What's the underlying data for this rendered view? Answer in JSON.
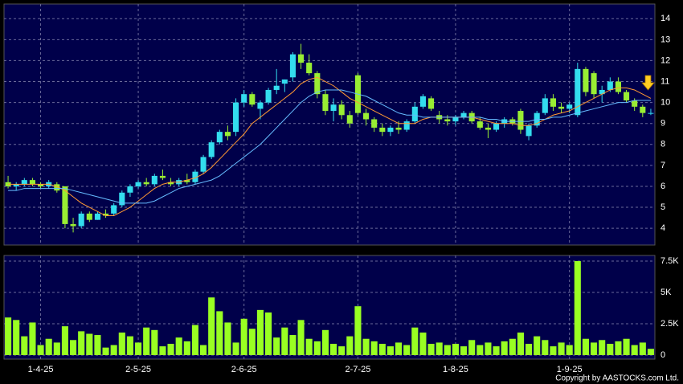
{
  "chart_data": [
    {
      "type": "candlestick",
      "ylim": [
        3.2,
        14.7
      ],
      "yticks": [
        4,
        5,
        6,
        7,
        8,
        9,
        10,
        11,
        12,
        13,
        14
      ],
      "grid": true,
      "up_color": "#33ddee",
      "down_color": "#99ee33",
      "candles": [
        [
          6.2,
          6.5,
          5.9,
          6.0
        ],
        [
          6.0,
          6.2,
          5.8,
          6.1
        ],
        [
          6.1,
          6.4,
          6.0,
          6.3
        ],
        [
          6.3,
          6.4,
          6.0,
          6.1
        ],
        [
          6.1,
          6.2,
          5.9,
          6.0
        ],
        [
          6.0,
          6.3,
          5.9,
          6.2
        ],
        [
          6.1,
          6.2,
          5.7,
          5.8
        ],
        [
          6.0,
          6.0,
          4.0,
          4.2
        ],
        [
          4.2,
          4.5,
          3.8,
          4.1
        ],
        [
          4.1,
          4.8,
          4.0,
          4.7
        ],
        [
          4.7,
          4.8,
          4.3,
          4.4
        ],
        [
          4.4,
          4.8,
          4.4,
          4.7
        ],
        [
          4.7,
          4.9,
          4.5,
          4.6
        ],
        [
          4.7,
          5.2,
          4.6,
          5.1
        ],
        [
          5.1,
          5.8,
          5.0,
          5.7
        ],
        [
          5.7,
          6.1,
          5.5,
          6.0
        ],
        [
          6.0,
          6.3,
          5.9,
          6.2
        ],
        [
          6.2,
          6.4,
          6.0,
          6.1
        ],
        [
          6.1,
          6.6,
          6.0,
          6.5
        ],
        [
          6.5,
          6.8,
          6.3,
          6.4
        ],
        [
          6.2,
          6.4,
          6.0,
          6.1
        ],
        [
          6.1,
          6.4,
          6.0,
          6.3
        ],
        [
          6.3,
          6.6,
          6.1,
          6.2
        ],
        [
          6.2,
          6.8,
          6.1,
          6.7
        ],
        [
          6.7,
          7.5,
          6.6,
          7.4
        ],
        [
          7.4,
          8.2,
          7.3,
          8.1
        ],
        [
          8.1,
          8.7,
          8.0,
          8.6
        ],
        [
          8.6,
          8.9,
          8.2,
          8.4
        ],
        [
          8.6,
          10.2,
          8.4,
          10.0
        ],
        [
          10.0,
          10.6,
          9.8,
          10.4
        ],
        [
          10.4,
          10.5,
          9.8,
          9.9
        ],
        [
          9.7,
          10.1,
          9.2,
          10.0
        ],
        [
          10.0,
          10.7,
          9.9,
          10.6
        ],
        [
          10.6,
          11.6,
          10.4,
          10.8
        ],
        [
          10.9,
          11.1,
          10.5,
          11.1
        ],
        [
          11.2,
          12.4,
          11.0,
          12.3
        ],
        [
          12.3,
          12.8,
          11.6,
          11.9
        ],
        [
          11.9,
          12.3,
          11.3,
          11.4
        ],
        [
          11.4,
          11.5,
          10.2,
          10.4
        ],
        [
          10.4,
          10.6,
          9.4,
          9.6
        ],
        [
          9.6,
          10.2,
          9.1,
          9.9
        ],
        [
          9.9,
          10.1,
          9.2,
          9.4
        ],
        [
          9.4,
          9.6,
          8.8,
          9.0
        ],
        [
          11.3,
          11.4,
          9.4,
          9.5
        ],
        [
          9.5,
          9.7,
          8.9,
          9.2
        ],
        [
          9.2,
          9.3,
          8.6,
          8.8
        ],
        [
          8.8,
          9.0,
          8.4,
          8.6
        ],
        [
          8.6,
          8.9,
          8.4,
          8.8
        ],
        [
          8.8,
          9.1,
          8.5,
          8.7
        ],
        [
          8.7,
          9.2,
          8.6,
          9.1
        ],
        [
          9.1,
          10.0,
          9.0,
          9.8
        ],
        [
          9.8,
          10.4,
          9.7,
          10.3
        ],
        [
          10.2,
          10.3,
          9.6,
          9.7
        ],
        [
          9.4,
          9.6,
          9.0,
          9.2
        ],
        [
          9.2,
          9.4,
          8.9,
          9.1
        ],
        [
          9.1,
          9.4,
          8.9,
          9.3
        ],
        [
          9.3,
          9.6,
          9.2,
          9.5
        ],
        [
          9.5,
          9.6,
          9.0,
          9.1
        ],
        [
          9.1,
          9.3,
          8.7,
          8.8
        ],
        [
          8.8,
          9.0,
          8.3,
          8.7
        ],
        [
          8.7,
          9.1,
          8.6,
          9.0
        ],
        [
          9.0,
          9.3,
          8.8,
          9.2
        ],
        [
          9.2,
          9.3,
          8.9,
          9.0
        ],
        [
          9.6,
          9.7,
          8.5,
          8.7
        ],
        [
          8.4,
          9.0,
          8.2,
          8.9
        ],
        [
          8.9,
          9.6,
          8.8,
          9.5
        ],
        [
          9.5,
          10.4,
          9.4,
          10.2
        ],
        [
          10.2,
          10.4,
          9.6,
          9.8
        ],
        [
          9.8,
          10.0,
          9.5,
          9.7
        ],
        [
          9.7,
          10.0,
          9.5,
          9.9
        ],
        [
          9.4,
          11.9,
          9.3,
          11.6
        ],
        [
          11.6,
          11.7,
          10.3,
          10.5
        ],
        [
          11.4,
          11.5,
          10.2,
          10.4
        ],
        [
          10.4,
          10.8,
          10.0,
          10.6
        ],
        [
          10.6,
          11.2,
          10.5,
          11.0
        ],
        [
          11.0,
          11.2,
          10.4,
          10.5
        ],
        [
          10.5,
          10.6,
          10.0,
          10.1
        ],
        [
          10.1,
          10.2,
          9.6,
          9.8
        ],
        [
          9.8,
          9.9,
          9.3,
          9.5
        ],
        [
          9.5,
          9.7,
          9.4,
          9.5
        ]
      ],
      "series": [
        {
          "color": "#ff9933",
          "values": [
            6.1,
            6.1,
            6.1,
            6.1,
            6.1,
            6.1,
            6.0,
            5.8,
            5.5,
            5.2,
            5.0,
            4.8,
            4.6,
            4.6,
            4.8,
            5.0,
            5.3,
            5.6,
            5.9,
            6.1,
            6.2,
            6.2,
            6.3,
            6.4,
            6.6,
            6.9,
            7.3,
            7.7,
            8.1,
            8.5,
            9.0,
            9.3,
            9.6,
            9.9,
            10.2,
            10.5,
            10.9,
            11.1,
            11.2,
            11.0,
            10.8,
            10.5,
            10.2,
            10.0,
            9.8,
            9.6,
            9.4,
            9.2,
            9.0,
            9.0,
            9.0,
            9.2,
            9.3,
            9.3,
            9.3,
            9.3,
            9.3,
            9.3,
            9.2,
            9.1,
            9.0,
            9.0,
            9.0,
            8.9,
            8.9,
            9.0,
            9.2,
            9.4,
            9.5,
            9.6,
            9.8,
            10.0,
            10.2,
            10.4,
            10.6,
            10.7,
            10.7,
            10.6,
            10.4,
            10.2
          ]
        },
        {
          "color": "#66bbff",
          "values": [
            5.8,
            5.8,
            5.9,
            5.9,
            5.9,
            5.9,
            5.9,
            5.9,
            5.8,
            5.7,
            5.6,
            5.5,
            5.4,
            5.3,
            5.2,
            5.2,
            5.2,
            5.2,
            5.3,
            5.5,
            5.7,
            5.9,
            6.0,
            6.1,
            6.2,
            6.3,
            6.5,
            6.8,
            7.1,
            7.4,
            7.7,
            8.0,
            8.4,
            8.8,
            9.2,
            9.6,
            10.0,
            10.3,
            10.5,
            10.6,
            10.6,
            10.6,
            10.5,
            10.4,
            10.3,
            10.1,
            9.9,
            9.7,
            9.5,
            9.4,
            9.4,
            9.3,
            9.3,
            9.3,
            9.3,
            9.3,
            9.3,
            9.3,
            9.3,
            9.2,
            9.2,
            9.1,
            9.1,
            9.1,
            9.1,
            9.2,
            9.2,
            9.3,
            9.3,
            9.4,
            9.5,
            9.6,
            9.7,
            9.8,
            9.9,
            10.0,
            10.0,
            10.1,
            10.1,
            10.1
          ]
        }
      ]
    },
    {
      "type": "bar",
      "color": "#99ff22",
      "ylim": [
        -320,
        7950
      ],
      "yticks": [
        0,
        {
          "value": 2500,
          "label": "2.5K"
        },
        {
          "value": 5000,
          "label": "5K"
        },
        {
          "value": 7500,
          "label": "7.5K"
        }
      ],
      "grid": true,
      "xticks": [
        {
          "value": 4,
          "label": "1-4-25"
        },
        {
          "value": 16,
          "label": "2-5-25"
        },
        {
          "value": 29,
          "label": "2-6-25"
        },
        {
          "value": 43,
          "label": "2-7-25"
        },
        {
          "value": 55,
          "label": "1-8-25"
        },
        {
          "value": 69,
          "label": "1-9-25"
        }
      ],
      "values": [
        3000,
        2800,
        1500,
        2600,
        800,
        1300,
        1000,
        2300,
        1200,
        1900,
        1700,
        1600,
        600,
        800,
        1800,
        1500,
        1000,
        2200,
        2000,
        700,
        900,
        1400,
        1100,
        2400,
        800,
        4600,
        3500,
        2600,
        1000,
        2900,
        2100,
        3600,
        3400,
        1400,
        2200,
        1600,
        2800,
        1300,
        1100,
        2000,
        900,
        700,
        1500,
        3900,
        1300,
        1100,
        900,
        700,
        1000,
        800,
        2200,
        1800,
        900,
        1000,
        800,
        900,
        700,
        1200,
        800,
        1000,
        700,
        1100,
        1300,
        1800,
        900,
        1500,
        1200,
        700,
        1000,
        800,
        7500,
        1300,
        1000,
        1200,
        900,
        1100,
        1300,
        800,
        1000,
        500
      ],
      "copyright": "Copyright by AASTOCKS.com Ltd."
    }
  ]
}
